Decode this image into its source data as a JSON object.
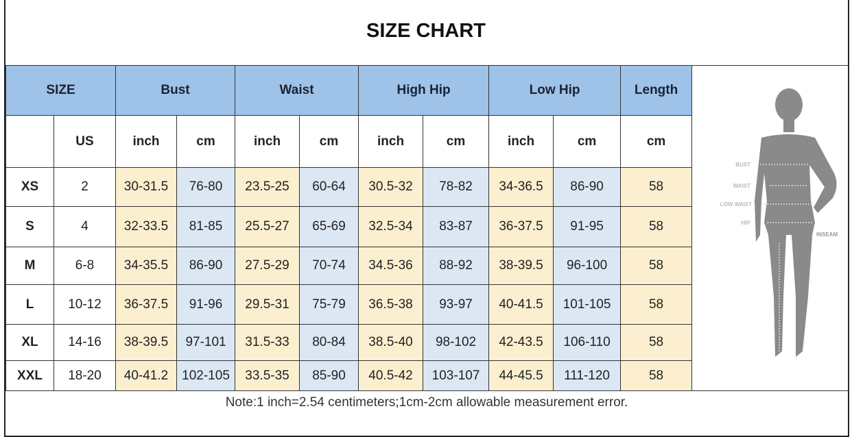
{
  "title": "SIZE CHART",
  "headers": [
    "SIZE",
    "Bust",
    "Waist",
    "High Hip",
    "Low Hip",
    "Length"
  ],
  "subheaders": [
    "",
    "US",
    "inch",
    "cm",
    "inch",
    "cm",
    "inch",
    "cm",
    "inch",
    "cm",
    "cm"
  ],
  "rows": [
    [
      "XS",
      "2",
      "30-31.5",
      "76-80",
      "23.5-25",
      "60-64",
      "30.5-32",
      "78-82",
      "34-36.5",
      "86-90",
      "58"
    ],
    [
      "S",
      "4",
      "32-33.5",
      "81-85",
      "25.5-27",
      "65-69",
      "32.5-34",
      "83-87",
      "36-37.5",
      "91-95",
      "58"
    ],
    [
      "M",
      "6-8",
      "34-35.5",
      "86-90",
      "27.5-29",
      "70-74",
      "34.5-36",
      "88-92",
      "38-39.5",
      "96-100",
      "58"
    ],
    [
      "L",
      "10-12",
      "36-37.5",
      "91-96",
      "29.5-31",
      "75-79",
      "36.5-38",
      "93-97",
      "40-41.5",
      "101-105",
      "58"
    ],
    [
      "XL",
      "14-16",
      "38-39.5",
      "97-101",
      "31.5-33",
      "80-84",
      "38.5-40",
      "98-102",
      "42-43.5",
      "106-110",
      "58"
    ],
    [
      "XXL",
      "18-20",
      "40-41.2",
      "102-105",
      "33.5-35",
      "85-90",
      "40.5-42",
      "103-107",
      "44-45.5",
      "111-120",
      "58"
    ]
  ],
  "figure": {
    "labels": [
      "BUST",
      "WAIST",
      "LOW WAIST",
      "HIP",
      "INSEAM"
    ]
  },
  "note": "Note:1 inch=2.54 centimeters;1cm-2cm allowable measurement error.",
  "colors": {
    "header": "#9ec2e8",
    "inch": "#fbefcf",
    "cm": "#dce7f4"
  }
}
